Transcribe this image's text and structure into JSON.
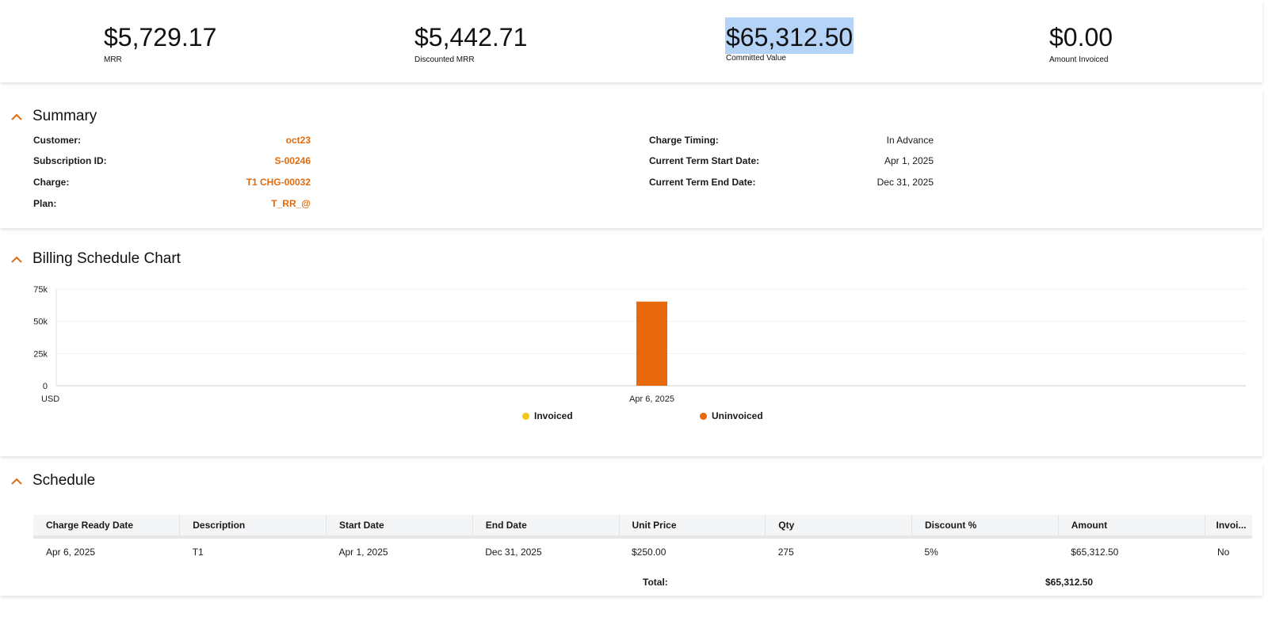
{
  "metrics": [
    {
      "value": "$5,729.17",
      "label": "MRR"
    },
    {
      "value": "$5,442.71",
      "label": "Discounted MRR"
    },
    {
      "value": "$65,312.50",
      "label": "Committed Value"
    },
    {
      "value": "$0.00",
      "label": "Amount Invoiced"
    }
  ],
  "summary": {
    "title": "Summary",
    "left": [
      {
        "key": "Customer:",
        "value": "oct23"
      },
      {
        "key": "Subscription ID:",
        "value": "S-00246"
      },
      {
        "key": "Charge:",
        "value": "T1 CHG-00032"
      },
      {
        "key": "Plan:",
        "value": "T_RR_@"
      }
    ],
    "right": [
      {
        "key": "Charge Timing:",
        "value": "In Advance"
      },
      {
        "key": "Current Term Start Date:",
        "value": "Apr 1, 2025"
      },
      {
        "key": "Current Term End Date:",
        "value": "Dec 31, 2025"
      }
    ]
  },
  "chart_section": {
    "title": "Billing Schedule Chart"
  },
  "chart_data": {
    "type": "bar",
    "categories": [
      "Apr 6, 2025"
    ],
    "series": [
      {
        "name": "Invoiced",
        "values": [
          0
        ],
        "color": "#f5c518"
      },
      {
        "name": "Uninvoiced",
        "values": [
          65312.5
        ],
        "color": "#e8690b"
      }
    ],
    "y_ticks": [
      "0",
      "25k",
      "50k",
      "75k"
    ],
    "ylim": [
      0,
      75000
    ],
    "xlabel": "USD",
    "legend_position": "bottom",
    "grid": true
  },
  "schedule": {
    "title": "Schedule",
    "columns": [
      "Charge Ready Date",
      "Description",
      "Start Date",
      "End Date",
      "Unit Price",
      "Qty",
      "Discount %",
      "Amount",
      "Invoi..."
    ],
    "rows": [
      [
        "Apr 6, 2025",
        "T1",
        "Apr 1, 2025",
        "Dec 31, 2025",
        "$250.00",
        "275",
        "5%",
        "$65,312.50",
        "No"
      ]
    ],
    "total_label": "Total:",
    "total_value": "$65,312.50"
  },
  "colors": {
    "accent": "#e06a0c",
    "bar": "#e8690b",
    "invoiced": "#f5c518",
    "selection": "#b4d3f7"
  }
}
